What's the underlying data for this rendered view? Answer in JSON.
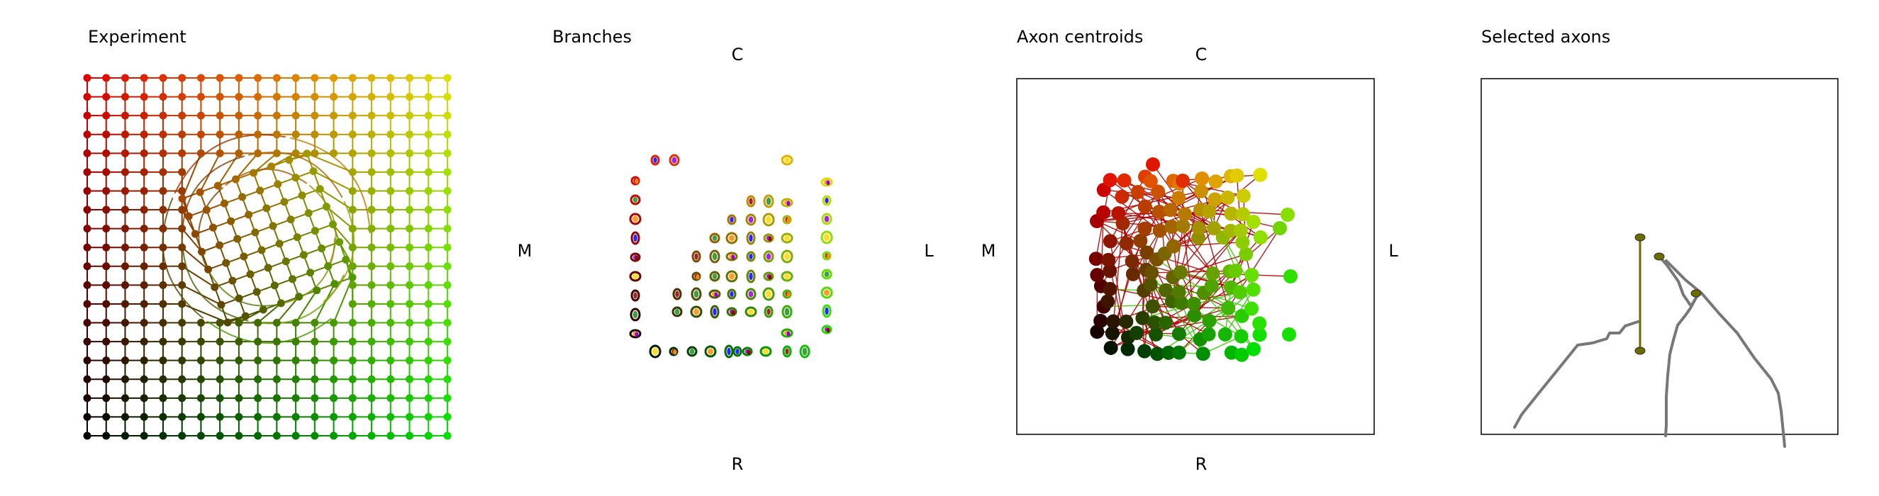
{
  "chart_data": [
    {
      "type": "scatter",
      "title": "Experiment",
      "description_values": {
        "grid_columns": 20,
        "grid_rows": 20,
        "x": [
          0,
          19
        ],
        "y": [
          0,
          19
        ],
        "rotated_patch": {
          "center": [
            9.5,
            10.5
          ],
          "size": 7,
          "rotation_deg": 20
        }
      },
      "color_mapping": {
        "origin_color": "#000000",
        "x_color": "#00e000",
        "y_color": "#e00000"
      },
      "grid": true
    },
    {
      "type": "scatter",
      "title": "Branches",
      "labels": {
        "top": "C",
        "bottom": "R",
        "left": "M",
        "right": "L"
      },
      "marker_colors": [
        "#8b0000",
        "#228b22",
        "#ff8c00",
        "#0000ff",
        "#9400d3",
        "#ffd700"
      ],
      "grid": false
    },
    {
      "type": "scatter",
      "title": "Axon centroids",
      "labels": {
        "top": "C",
        "bottom": "R",
        "left": "M",
        "right": "L"
      },
      "colors": {
        "high_c": "#e00000",
        "high_l": "#00e000",
        "origin": "#000000",
        "edge": "#b00000"
      },
      "grid": false
    },
    {
      "type": "line",
      "title": "Selected axons",
      "colors": {
        "trace": "#777777",
        "node": "#6b6b00"
      },
      "grid": false
    }
  ]
}
